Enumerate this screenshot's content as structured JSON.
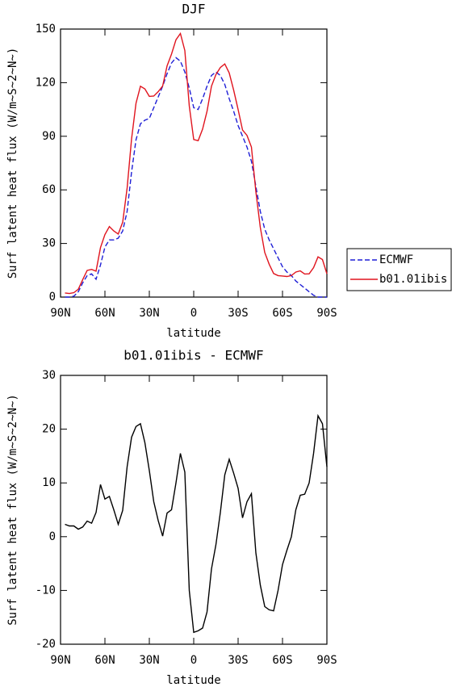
{
  "chart_data": [
    {
      "type": "line",
      "title": "DJF",
      "xlabel": "latitude",
      "ylabel": "Surf latent heat flux (W/m~S~2~N~)",
      "x": [
        87,
        84,
        81,
        78,
        75,
        72,
        69,
        66,
        63,
        60,
        57,
        54,
        51,
        48,
        45,
        42,
        39,
        36,
        33,
        30,
        27,
        24,
        21,
        18,
        15,
        12,
        9,
        6,
        3,
        0,
        -3,
        -6,
        -9,
        -12,
        -15,
        -18,
        -21,
        -24,
        -27,
        -30,
        -33,
        -36,
        -39,
        -42,
        -45,
        -48,
        -51,
        -54,
        -57,
        -60,
        -63,
        -66,
        -69,
        -72,
        -75,
        -78,
        -81,
        -84,
        -87,
        -90
      ],
      "series": [
        {
          "name": "ECMWF",
          "color": "#1f1fd6",
          "dash": true,
          "values": [
            0,
            0,
            0.5,
            3,
            8,
            12,
            13,
            10,
            18,
            28,
            32,
            32,
            33,
            37,
            48,
            70,
            88,
            97,
            99,
            100,
            106,
            112,
            118,
            125,
            131,
            134,
            132,
            126,
            117,
            106,
            105,
            111,
            118,
            124,
            126,
            124,
            119,
            111,
            104,
            96,
            90,
            84,
            76,
            62,
            48,
            38,
            32,
            27,
            22,
            17,
            14,
            12,
            9,
            7,
            5,
            3,
            1,
            0,
            0,
            0
          ]
        },
        {
          "name": "b01.01ibis",
          "color": "#e0141e",
          "dash": false,
          "values": [
            2.3,
            2.0,
            2.5,
            4.4,
            9.8,
            14.9,
            15.5,
            14.5,
            27.7,
            35,
            39.5,
            37,
            35.3,
            41.9,
            61,
            88.5,
            108.5,
            118,
            116.5,
            112.3,
            112.5,
            115,
            118.1,
            129.4,
            136,
            144,
            147.5,
            138,
            107,
            88.2,
            87.5,
            94,
            104,
            118,
            124.5,
            128.5,
            130.5,
            125.4,
            115.8,
            105,
            93.5,
            90.5,
            84,
            59,
            39,
            25,
            18.4,
            13.2,
            12,
            11.8,
            11.5,
            12,
            14,
            14.7,
            12.9,
            13,
            16.5,
            22.5,
            21,
            13
          ]
        }
      ],
      "xlim": [
        90,
        -90
      ],
      "xticks": [
        {
          "value": 90,
          "label": "90N"
        },
        {
          "value": 60,
          "label": "60N"
        },
        {
          "value": 30,
          "label": "30N"
        },
        0,
        {
          "value": -30,
          "label": "30S"
        },
        {
          "value": -60,
          "label": "60S"
        },
        {
          "value": -90,
          "label": "90S"
        }
      ],
      "ylim": [
        0,
        150
      ],
      "yticks": [
        0,
        30,
        60,
        90,
        120,
        150
      ],
      "legend": "right"
    },
    {
      "type": "line",
      "title": "b01.01ibis - ECMWF",
      "xlabel": "latitude",
      "ylabel": "Surf latent heat flux (W/m~S~2~N~)",
      "x": [
        87,
        84,
        81,
        78,
        75,
        72,
        69,
        66,
        63,
        60,
        57,
        54,
        51,
        48,
        45,
        42,
        39,
        36,
        33,
        30,
        27,
        24,
        21,
        18,
        15,
        12,
        9,
        6,
        3,
        0,
        -3,
        -6,
        -9,
        -12,
        -15,
        -18,
        -21,
        -24,
        -27,
        -30,
        -33,
        -36,
        -39,
        -42,
        -45,
        -48,
        -51,
        -54,
        -57,
        -60,
        -63,
        -66,
        -69,
        -72,
        -75,
        -78,
        -81,
        -84,
        -87,
        -90
      ],
      "series": [
        {
          "color": "#000000",
          "dash": false,
          "values": [
            2.3,
            2.0,
            2.0,
            1.4,
            1.8,
            2.9,
            2.5,
            4.5,
            9.7,
            7.0,
            7.5,
            5.0,
            2.3,
            4.9,
            13,
            18.5,
            20.5,
            21,
            17.5,
            12.3,
            6.5,
            3.0,
            0.1,
            4.4,
            5.0,
            10,
            15.5,
            12,
            -10,
            -17.8,
            -17.5,
            -17,
            -14,
            -6,
            -1.5,
            4.5,
            11.5,
            14.4,
            11.8,
            9,
            3.5,
            6.5,
            8,
            -3,
            -9,
            -13,
            -13.6,
            -13.8,
            -10,
            -5.2,
            -2.5,
            0,
            5,
            7.7,
            7.9,
            10,
            15.5,
            22.5,
            21,
            13
          ]
        }
      ],
      "xlim": [
        90,
        -90
      ],
      "xticks": [
        {
          "value": 90,
          "label": "90N"
        },
        {
          "value": 60,
          "label": "60N"
        },
        {
          "value": 30,
          "label": "30N"
        },
        0,
        {
          "value": -30,
          "label": "30S"
        },
        {
          "value": -60,
          "label": "60S"
        },
        {
          "value": -90,
          "label": "90S"
        }
      ],
      "ylim": [
        -20,
        30
      ],
      "yticks": [
        -20,
        -10,
        0,
        10,
        20,
        30
      ]
    }
  ]
}
